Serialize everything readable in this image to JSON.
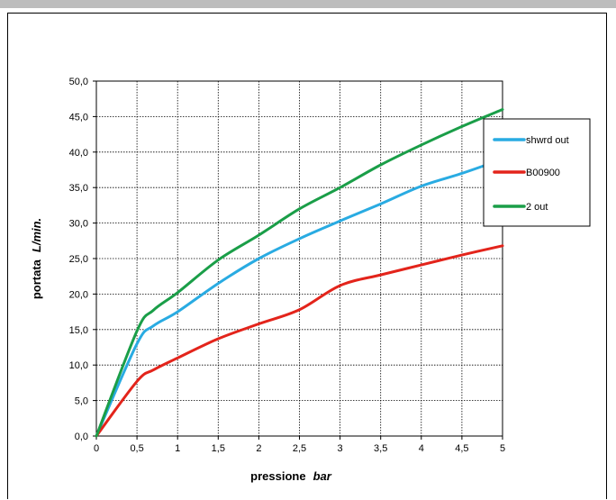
{
  "chart_data": {
    "type": "line",
    "title": "",
    "xlabel": "pressione",
    "xlabel_unit": "bar",
    "ylabel": "portata",
    "ylabel_unit": "L/min.",
    "xlim": [
      0,
      5
    ],
    "ylim": [
      0,
      50
    ],
    "x_ticks": [
      "0",
      "0,5",
      "1",
      "1,5",
      "2",
      "2,5",
      "3",
      "3,5",
      "4",
      "4,5",
      "5"
    ],
    "y_ticks": [
      "0,0",
      "5,0",
      "10,0",
      "15,0",
      "20,0",
      "25,0",
      "30,0",
      "35,0",
      "40,0",
      "45,0",
      "50,0"
    ],
    "grid": true,
    "legend_position": "right",
    "series": [
      {
        "name": "shwrd out",
        "color": "#29abe2",
        "x": [
          0,
          0.5,
          0.7,
          1.0,
          1.5,
          2.0,
          2.5,
          3.0,
          3.5,
          4.0,
          4.5,
          5.0
        ],
        "y": [
          0,
          13.0,
          15.5,
          17.5,
          21.5,
          25.0,
          27.8,
          30.3,
          32.7,
          35.2,
          37.0,
          39.0
        ]
      },
      {
        "name": "B00900",
        "color": "#e3241b",
        "x": [
          0,
          0.5,
          0.7,
          1.0,
          1.5,
          2.0,
          2.5,
          3.0,
          3.5,
          4.0,
          4.5,
          5.0
        ],
        "y": [
          0,
          7.7,
          9.3,
          11.0,
          13.7,
          15.8,
          17.8,
          21.2,
          22.7,
          24.1,
          25.5,
          26.8
        ]
      },
      {
        "name": "2 out",
        "color": "#1a9e48",
        "x": [
          0,
          0.5,
          0.7,
          1.0,
          1.5,
          2.0,
          2.5,
          3.0,
          3.5,
          4.0,
          4.5,
          5.0
        ],
        "y": [
          0,
          14.8,
          17.7,
          20.2,
          24.8,
          28.3,
          32.0,
          35.0,
          38.2,
          41.0,
          43.6,
          46.0
        ]
      }
    ]
  }
}
